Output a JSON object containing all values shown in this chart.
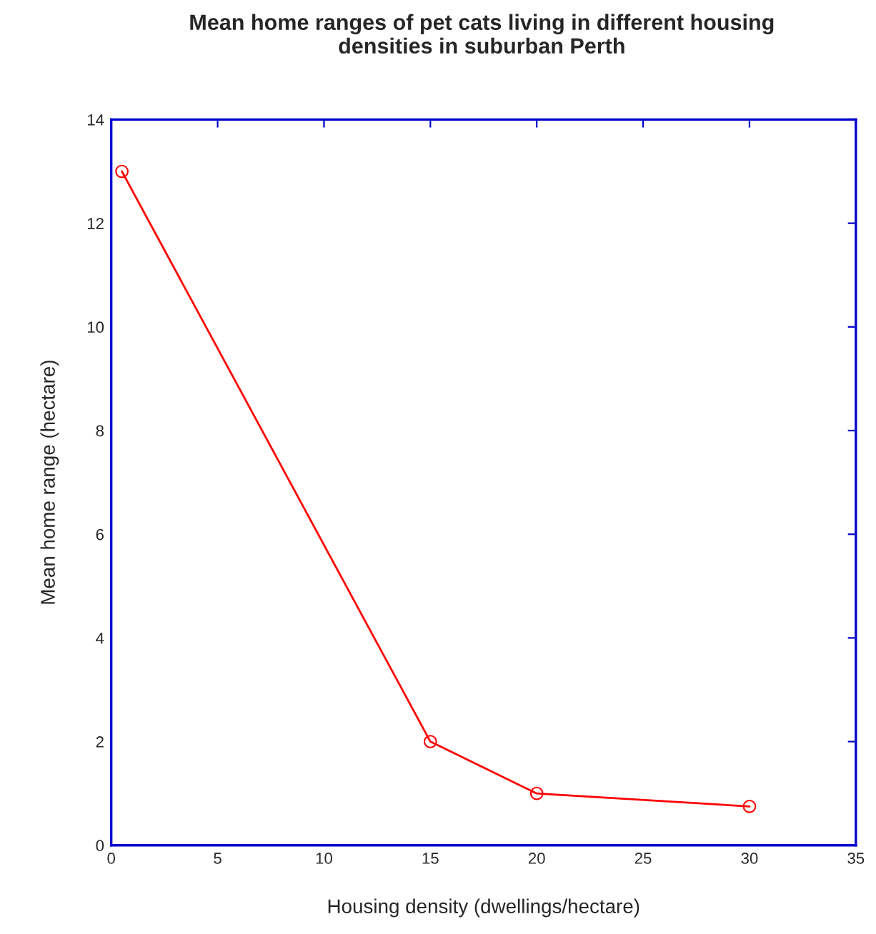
{
  "chart_data": {
    "type": "line",
    "title": "Mean home ranges of pet cats living in different housing\ndensities in suburban Perth",
    "xlabel": "Housing density (dwellings/hectare)",
    "ylabel": "Mean home range (hectare)",
    "x": [
      0.5,
      15,
      20,
      30
    ],
    "series": [
      {
        "color": "#ff0000",
        "values": [
          13,
          2,
          1,
          0.75
        ]
      }
    ],
    "xlim": [
      0,
      35
    ],
    "xticks": [
      0,
      5,
      10,
      15,
      20,
      25,
      30,
      35
    ],
    "ylim": [
      0,
      14
    ],
    "yticks": [
      0,
      2,
      4,
      6,
      8,
      10,
      12,
      14
    ],
    "marker": "circle",
    "line_style": "solid",
    "grid": false,
    "legend": false
  }
}
